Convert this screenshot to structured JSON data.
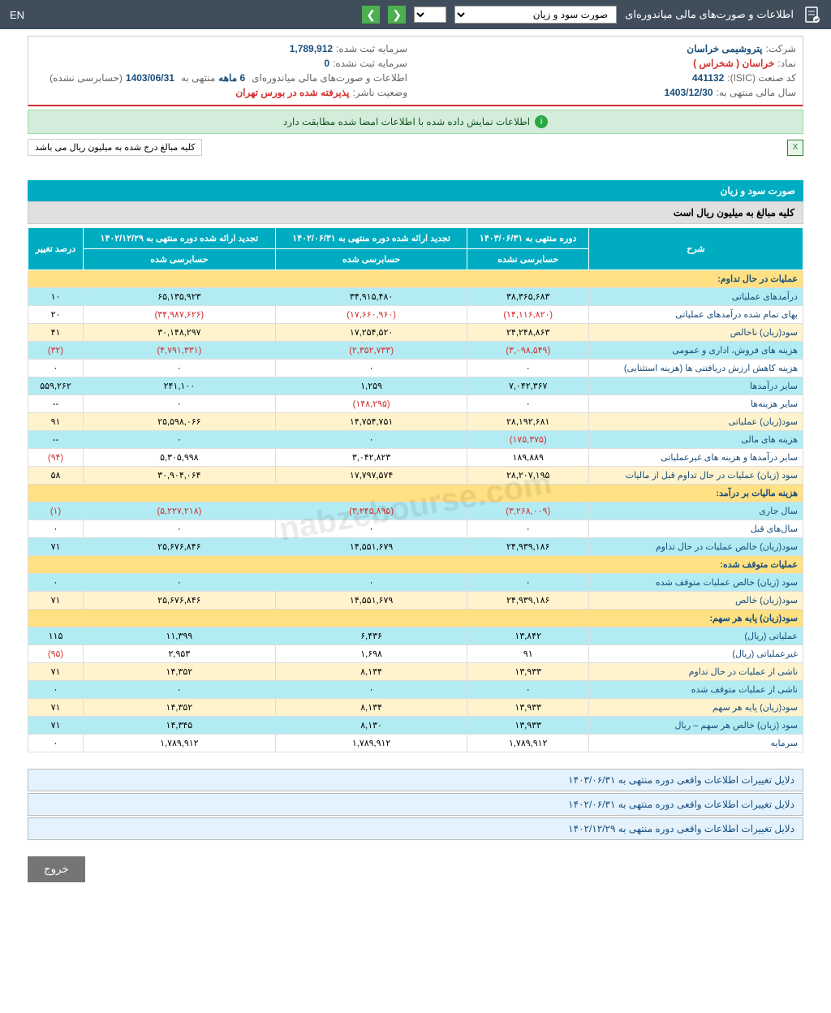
{
  "topbar": {
    "title": "اطلاعات و صورت‌های مالی میاندوره‌ای",
    "selected": "صورت سود و زیان",
    "lang": "EN"
  },
  "info": {
    "company_label": "شرکت:",
    "company_value": "پتروشیمی خراسان",
    "capital_reg_label": "سرمایه ثبت شده:",
    "capital_reg_value": "1,789,912",
    "symbol_label": "نماد:",
    "symbol_value": "خراسان ( شخراس )",
    "capital_unreg_label": "سرمایه ثبت نشده:",
    "capital_unreg_value": "0",
    "isic_label": "کد صنعت (ISIC):",
    "isic_value": "441132",
    "period_label": "اطلاعات و صورت‌های مالی میاندوره‌ای",
    "period_value": "6 ماهه",
    "period_end": "منتهی به",
    "period_date": "1403/06/31",
    "period_audit": "(حسابرسی نشده)",
    "year_label": "سال مالی منتهی به:",
    "year_value": "1403/12/30",
    "status_label": "وضعیت ناشر:",
    "status_value": "پذیرفته شده در بورس تهران"
  },
  "green_msg": "اطلاعات نمایش داده شده با اطلاعات امضا شده مطابقت دارد",
  "note": "کلیه مبالغ درج شده به میلیون ریال می باشد",
  "section_title": "صورت سود و زیان",
  "section_sub": "کلیه مبالغ به میلیون ریال است",
  "headers": {
    "desc": "شرح",
    "c1_top": "دوره منتهی به ۱۴۰۳/۰۶/۳۱",
    "c1_sub": "حسابرسی نشده",
    "c2_top": "تجدید ارائه شده دوره منتهی به ۱۴۰۲/۰۶/۳۱",
    "c2_sub": "حسابرسی شده",
    "c3_top": "تجدید ارائه شده دوره منتهی به ۱۴۰۲/۱۲/۲۹",
    "c3_sub": "حسابرسی شده",
    "c4": "درصد تغییر"
  },
  "rows": [
    {
      "type": "hdr",
      "desc": "عملیات در حال تداوم:"
    },
    {
      "type": "cyan",
      "desc": "درآمدهای عملیاتی",
      "v1": "۳۸,۳۶۵,۶۸۳",
      "v2": "۳۴,۹۱۵,۴۸۰",
      "v3": "۶۵,۱۳۵,۹۲۳",
      "v4": "۱۰"
    },
    {
      "type": "",
      "desc": "بهای تمام شده درآمدهای عملیاتی",
      "v1": "(۱۴,۱۱۶,۸۲۰)",
      "v2": "(۱۷,۶۶۰,۹۶۰)",
      "v3": "(۳۴,۹۸۷,۶۲۶)",
      "v4": "۲۰",
      "neg": true
    },
    {
      "type": "yellow",
      "desc": "سود(زیان) ناخالص",
      "v1": "۲۴,۲۴۸,۸۶۳",
      "v2": "۱۷,۲۵۴,۵۲۰",
      "v3": "۳۰,۱۴۸,۲۹۷",
      "v4": "۴۱"
    },
    {
      "type": "cyan",
      "desc": "هزینه های فروش، اداری و عمومی",
      "v1": "(۳,۰۹۸,۵۴۹)",
      "v2": "(۲,۳۵۲,۷۳۳)",
      "v3": "(۴,۷۹۱,۳۳۱)",
      "v4": "(۳۲)",
      "neg": true,
      "v4neg": true
    },
    {
      "type": "",
      "desc": "هزینه کاهش ارزش دریافتنی ها (هزینه استثنایی)",
      "v1": "۰",
      "v2": "۰",
      "v3": "۰",
      "v4": "۰"
    },
    {
      "type": "cyan",
      "desc": "سایر درآمدها",
      "v1": "۷,۰۴۲,۳۶۷",
      "v2": "۱,۲۵۹",
      "v3": "۲۴۱,۱۰۰",
      "v4": "۵۵۹,۲۶۲"
    },
    {
      "type": "",
      "desc": "سایر هزینه‌ها",
      "v1": "۰",
      "v2": "(۱۴۸,۲۹۵)",
      "v3": "۰",
      "v4": "--",
      "n2": true
    },
    {
      "type": "yellow",
      "desc": "سود(زیان) عملیاتی",
      "v1": "۲۸,۱۹۲,۶۸۱",
      "v2": "۱۴,۷۵۴,۷۵۱",
      "v3": "۲۵,۵۹۸,۰۶۶",
      "v4": "۹۱"
    },
    {
      "type": "cyan",
      "desc": "هزینه های مالی",
      "v1": "(۱۷۵,۳۷۵)",
      "v2": "۰",
      "v3": "۰",
      "v4": "--",
      "n1": true
    },
    {
      "type": "",
      "desc": "سایر درآمدها و هزینه های غیرعملیاتی",
      "v1": "۱۸۹,۸۸۹",
      "v2": "۳,۰۴۲,۸۲۳",
      "v3": "۵,۳۰۵,۹۹۸",
      "v4": "(۹۴)",
      "v4neg": true
    },
    {
      "type": "yellow",
      "desc": "سود (زیان) عملیات در حال تداوم قبل از مالیات",
      "v1": "۲۸,۲۰۷,۱۹۵",
      "v2": "۱۷,۷۹۷,۵۷۴",
      "v3": "۳۰,۹۰۴,۰۶۴",
      "v4": "۵۸"
    },
    {
      "type": "hdr",
      "desc": "هزینه مالیات بر درآمد:"
    },
    {
      "type": "cyan",
      "desc": "سال جاری",
      "v1": "(۳,۲۶۸,۰۰۹)",
      "v2": "(۳,۲۴۵,۸۹۵)",
      "v3": "(۵,۲۲۷,۲۱۸)",
      "v4": "(۱)",
      "neg": true,
      "v4neg": true
    },
    {
      "type": "",
      "desc": "سال‌های قبل",
      "v1": "۰",
      "v2": "۰",
      "v3": "۰",
      "v4": "۰"
    },
    {
      "type": "cyan",
      "desc": "سود(زیان) خالص عملیات در حال تداوم",
      "v1": "۲۴,۹۳۹,۱۸۶",
      "v2": "۱۴,۵۵۱,۶۷۹",
      "v3": "۲۵,۶۷۶,۸۴۶",
      "v4": "۷۱"
    },
    {
      "type": "hdr",
      "desc": "عملیات متوقف شده:"
    },
    {
      "type": "cyan",
      "desc": "سود (زیان) خالص عملیات متوقف شده",
      "v1": "۰",
      "v2": "۰",
      "v3": "۰",
      "v4": "۰"
    },
    {
      "type": "yellow",
      "desc": "سود(زیان) خالص",
      "v1": "۲۴,۹۳۹,۱۸۶",
      "v2": "۱۴,۵۵۱,۶۷۹",
      "v3": "۲۵,۶۷۶,۸۴۶",
      "v4": "۷۱"
    },
    {
      "type": "hdr",
      "desc": "سود(زیان) پایه هر سهم:"
    },
    {
      "type": "cyan",
      "desc": "عملیاتی (ریال)",
      "v1": "۱۳,۸۴۲",
      "v2": "۶,۴۳۶",
      "v3": "۱۱,۳۹۹",
      "v4": "۱۱۵"
    },
    {
      "type": "",
      "desc": "غیرعملیاتی (ریال)",
      "v1": "۹۱",
      "v2": "۱,۶۹۸",
      "v3": "۲,۹۵۳",
      "v4": "(۹۵)",
      "v4neg": true
    },
    {
      "type": "yellow",
      "desc": "ناشی از عملیات در حال تداوم",
      "v1": "۱۳,۹۳۳",
      "v2": "۸,۱۳۴",
      "v3": "۱۴,۳۵۲",
      "v4": "۷۱"
    },
    {
      "type": "cyan",
      "desc": "ناشی از عملیات متوقف شده",
      "v1": "۰",
      "v2": "۰",
      "v3": "۰",
      "v4": "۰"
    },
    {
      "type": "yellow",
      "desc": "سود(زیان) پایه هر سهم",
      "v1": "۱۳,۹۳۳",
      "v2": "۸,۱۳۴",
      "v3": "۱۴,۳۵۲",
      "v4": "۷۱"
    },
    {
      "type": "cyan",
      "desc": "سود (زیان) خالص هر سهم – ریال",
      "v1": "۱۳,۹۳۳",
      "v2": "۸,۱۳۰",
      "v3": "۱۴,۳۴۵",
      "v4": "۷۱"
    },
    {
      "type": "",
      "desc": "سرمایه",
      "v1": "۱,۷۸۹,۹۱۲",
      "v2": "۱,۷۸۹,۹۱۲",
      "v3": "۱,۷۸۹,۹۱۲",
      "v4": "۰"
    }
  ],
  "footer_bars": [
    "دلایل تغییرات اطلاعات واقعی دوره منتهی به ۱۴۰۳/۰۶/۳۱",
    "دلایل تغییرات اطلاعات واقعی دوره منتهی به ۱۴۰۲/۰۶/۳۱",
    "دلایل تغییرات اطلاعات واقعی دوره منتهی به ۱۴۰۲/۱۲/۲۹"
  ],
  "exit_btn": "خروج",
  "watermark": "nabzebourse.com"
}
